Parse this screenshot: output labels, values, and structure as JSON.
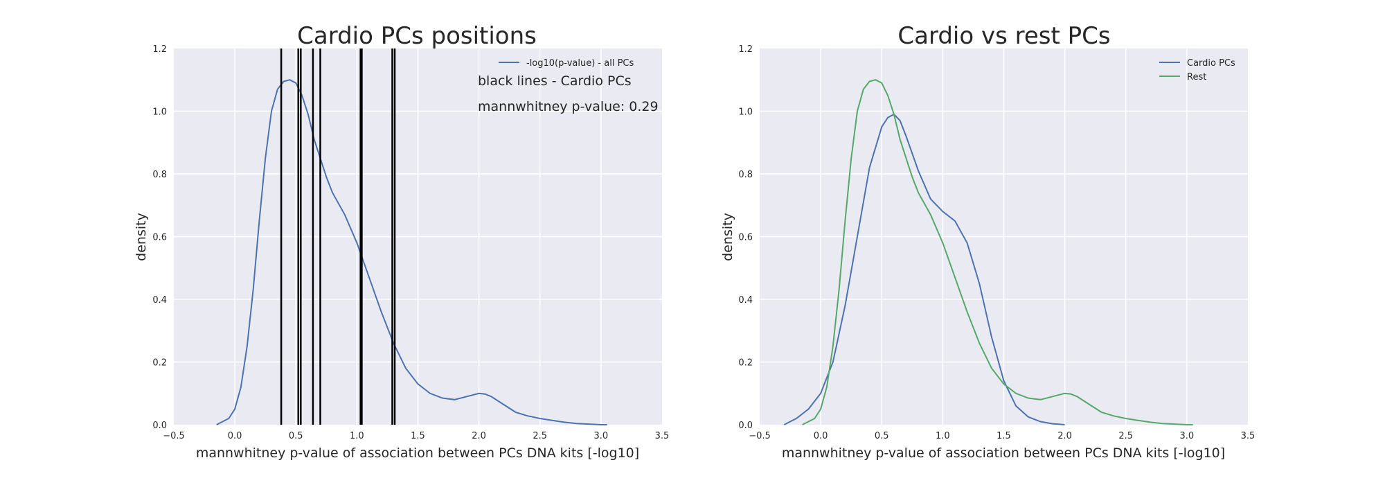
{
  "chart_data": [
    {
      "type": "line",
      "title": "Cardio PCs positions",
      "xlabel": "mannwhitney p-value of association between PCs DNA kits [-log10]",
      "ylabel": "density",
      "xlim": [
        -0.5,
        3.5
      ],
      "ylim": [
        0.0,
        1.2
      ],
      "xticks": [
        "−0.5",
        "0.0",
        "0.5",
        "1.0",
        "1.5",
        "2.0",
        "2.5",
        "3.0",
        "3.5"
      ],
      "yticks": [
        "0.0",
        "0.2",
        "0.4",
        "0.6",
        "0.8",
        "1.0",
        "1.2"
      ],
      "grid": true,
      "legend_position": "top-right",
      "series": [
        {
          "name": "-log10(p-value) - all PCs",
          "color": "#4c72b0",
          "x": [
            -0.15,
            -0.05,
            0.0,
            0.05,
            0.1,
            0.15,
            0.2,
            0.25,
            0.3,
            0.35,
            0.4,
            0.45,
            0.5,
            0.55,
            0.6,
            0.65,
            0.7,
            0.75,
            0.8,
            0.9,
            1.0,
            1.1,
            1.2,
            1.3,
            1.4,
            1.5,
            1.6,
            1.7,
            1.8,
            1.9,
            2.0,
            2.05,
            2.1,
            2.2,
            2.3,
            2.4,
            2.5,
            2.6,
            2.7,
            2.8,
            2.9,
            3.0,
            3.05
          ],
          "y": [
            0.0,
            0.02,
            0.05,
            0.12,
            0.25,
            0.43,
            0.65,
            0.85,
            1.0,
            1.07,
            1.095,
            1.1,
            1.09,
            1.05,
            0.99,
            0.91,
            0.85,
            0.79,
            0.74,
            0.67,
            0.58,
            0.47,
            0.36,
            0.26,
            0.18,
            0.13,
            0.1,
            0.085,
            0.08,
            0.09,
            0.1,
            0.098,
            0.09,
            0.065,
            0.04,
            0.028,
            0.02,
            0.014,
            0.008,
            0.004,
            0.002,
            0.0,
            0.0
          ]
        }
      ],
      "markers": {
        "color": "#000000",
        "x": [
          0.38,
          0.52,
          0.54,
          0.64,
          0.7,
          1.03,
          1.04,
          1.29,
          1.31
        ]
      },
      "annotations": [
        "black lines - Cardio PCs",
        "mannwhitney p-value: 0.29"
      ]
    },
    {
      "type": "line",
      "title": "Cardio vs rest PCs",
      "xlabel": "mannwhitney p-value of association between PCs DNA kits [-log10]",
      "ylabel": "density",
      "xlim": [
        -0.5,
        3.5
      ],
      "ylim": [
        0.0,
        1.2
      ],
      "xticks": [
        "−0.5",
        "0.0",
        "0.5",
        "1.0",
        "1.5",
        "2.0",
        "2.5",
        "3.0",
        "3.5"
      ],
      "yticks": [
        "0.0",
        "0.2",
        "0.4",
        "0.6",
        "0.8",
        "1.0",
        "1.2"
      ],
      "grid": true,
      "legend_position": "top-right",
      "series": [
        {
          "name": "Cardio PCs",
          "color": "#4c72b0",
          "x": [
            -0.3,
            -0.2,
            -0.1,
            0.0,
            0.1,
            0.2,
            0.3,
            0.4,
            0.5,
            0.55,
            0.6,
            0.65,
            0.7,
            0.8,
            0.9,
            1.0,
            1.1,
            1.2,
            1.3,
            1.4,
            1.5,
            1.6,
            1.7,
            1.8,
            1.9,
            2.0
          ],
          "y": [
            0.0,
            0.02,
            0.05,
            0.1,
            0.2,
            0.38,
            0.6,
            0.82,
            0.95,
            0.98,
            0.99,
            0.97,
            0.92,
            0.81,
            0.72,
            0.68,
            0.65,
            0.58,
            0.45,
            0.28,
            0.14,
            0.06,
            0.025,
            0.01,
            0.003,
            0.0
          ]
        },
        {
          "name": "Rest",
          "color": "#55a868",
          "x": [
            -0.15,
            -0.05,
            0.0,
            0.05,
            0.1,
            0.15,
            0.2,
            0.25,
            0.3,
            0.35,
            0.4,
            0.45,
            0.5,
            0.55,
            0.6,
            0.65,
            0.7,
            0.75,
            0.8,
            0.9,
            1.0,
            1.1,
            1.2,
            1.3,
            1.4,
            1.5,
            1.6,
            1.7,
            1.8,
            1.9,
            2.0,
            2.05,
            2.1,
            2.2,
            2.3,
            2.4,
            2.5,
            2.6,
            2.7,
            2.8,
            2.9,
            3.0,
            3.05
          ],
          "y": [
            0.0,
            0.02,
            0.05,
            0.12,
            0.25,
            0.43,
            0.65,
            0.85,
            1.0,
            1.07,
            1.095,
            1.1,
            1.09,
            1.05,
            0.99,
            0.91,
            0.85,
            0.79,
            0.74,
            0.67,
            0.58,
            0.47,
            0.36,
            0.26,
            0.18,
            0.13,
            0.1,
            0.085,
            0.08,
            0.09,
            0.1,
            0.098,
            0.09,
            0.065,
            0.04,
            0.028,
            0.02,
            0.014,
            0.008,
            0.004,
            0.002,
            0.0,
            0.0
          ]
        }
      ]
    }
  ]
}
